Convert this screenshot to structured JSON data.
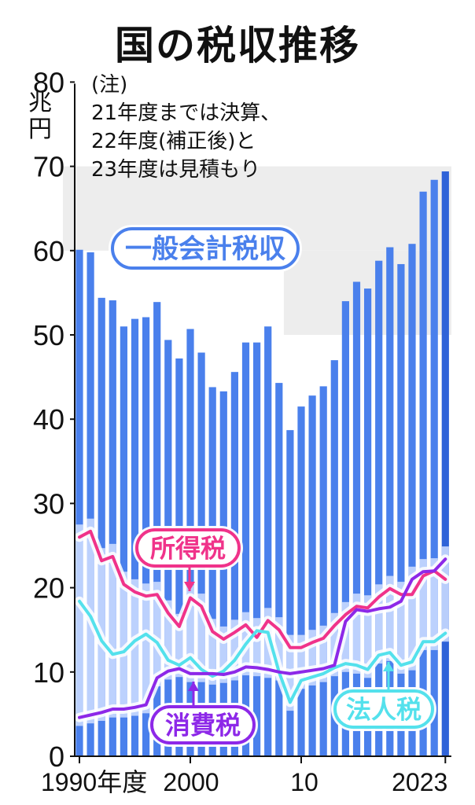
{
  "chart_data": {
    "type": "bar",
    "title": "国の税収推移",
    "unit_label": "兆円",
    "note": [
      "(注)",
      "21年度までは決算、",
      "22年度(補正後)と",
      "23年度は見積もり"
    ],
    "y_ticks": [
      "0",
      "10",
      "20",
      "30",
      "40",
      "50",
      "60",
      "70",
      "80"
    ],
    "x_tick_labels": [
      "1990年度",
      "2000",
      "10",
      "2023"
    ],
    "ylim": [
      0,
      80
    ],
    "x": [
      1990,
      1991,
      1992,
      1993,
      1994,
      1995,
      1996,
      1997,
      1998,
      1999,
      2000,
      2001,
      2002,
      2003,
      2004,
      2005,
      2006,
      2007,
      2008,
      2009,
      2010,
      2011,
      2012,
      2013,
      2014,
      2015,
      2016,
      2017,
      2018,
      2019,
      2020,
      2021,
      2022,
      2023
    ],
    "series": [
      {
        "name": "一般会計税収",
        "kind": "bar",
        "color": "#4a80ec",
        "values": [
          60.1,
          59.8,
          54.4,
          54.1,
          51.0,
          51.9,
          52.1,
          53.9,
          49.4,
          47.2,
          50.7,
          47.9,
          43.8,
          43.3,
          45.6,
          49.1,
          49.1,
          51.0,
          44.3,
          38.7,
          41.5,
          42.8,
          43.9,
          47.0,
          54.0,
          56.3,
          55.5,
          58.8,
          60.4,
          58.4,
          60.8,
          67.0,
          68.4,
          69.4
        ]
      },
      {
        "name": "所得税",
        "kind": "line",
        "color": "#f0338a",
        "values": [
          26.0,
          26.7,
          23.2,
          23.7,
          20.4,
          19.5,
          19.0,
          19.2,
          17.0,
          15.4,
          18.8,
          17.8,
          14.8,
          13.9,
          14.7,
          15.6,
          14.1,
          16.1,
          15.0,
          12.9,
          12.9,
          13.5,
          14.0,
          15.5,
          16.8,
          17.8,
          17.6,
          18.9,
          19.9,
          19.2,
          19.2,
          21.4,
          22.0,
          21.0
        ]
      },
      {
        "name": "法人税",
        "kind": "line",
        "color": "#54e1ec",
        "values": [
          18.4,
          16.6,
          13.7,
          12.1,
          12.4,
          13.7,
          14.5,
          13.5,
          11.4,
          10.8,
          11.7,
          10.3,
          9.5,
          10.1,
          11.4,
          13.3,
          14.9,
          14.7,
          10.0,
          6.4,
          9.0,
          9.4,
          9.8,
          10.5,
          11.0,
          10.8,
          10.3,
          12.0,
          12.3,
          10.8,
          11.2,
          13.6,
          13.6,
          14.6
        ]
      },
      {
        "name": "消費税",
        "kind": "line",
        "color": "#8d28e8",
        "values": [
          4.6,
          4.9,
          5.2,
          5.6,
          5.6,
          5.8,
          6.1,
          9.3,
          10.1,
          10.4,
          9.8,
          9.8,
          9.8,
          9.7,
          10.0,
          10.6,
          10.5,
          10.3,
          10.0,
          9.8,
          10.0,
          10.2,
          10.4,
          10.8,
          16.0,
          17.4,
          17.2,
          17.5,
          17.7,
          18.4,
          21.0,
          21.9,
          22.0,
          23.4
        ]
      }
    ],
    "labels": {
      "total": "一般会計税収",
      "income": "所得税",
      "consumption": "消費税",
      "corporate": "法人税"
    },
    "colors": {
      "bar": "#4a80ec",
      "bar_last": "#2f63d8",
      "lower_band": "#c9d9ff",
      "band_bg": "#ededed",
      "income": "#f0338a",
      "corporate": "#54e1ec",
      "consumption": "#8d28e8"
    }
  }
}
